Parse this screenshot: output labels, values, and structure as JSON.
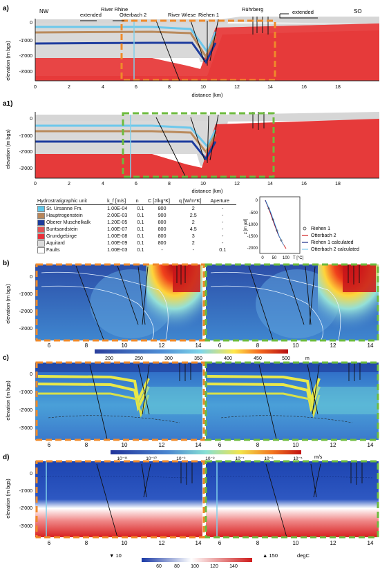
{
  "panel_a": {
    "label": "a)",
    "dir_left": "NW",
    "dir_right": "SO",
    "extended_left": "extended",
    "extended_right": "extended",
    "top_labels": [
      "River Rhine",
      "Otterbach 2",
      "River Wiese",
      "Riehen 1",
      "Rührberg"
    ],
    "ylabel": "elevation (m bgs)",
    "xlabel": "distance (km)",
    "y_ticks": [
      "0",
      "-1'000",
      "-2'000",
      "-3'000"
    ],
    "x_ticks": [
      "0",
      "2",
      "4",
      "6",
      "8",
      "10",
      "12",
      "14",
      "16",
      "18"
    ]
  },
  "panel_a1": {
    "label": "a1)",
    "ylabel": "elevation (m bgs)",
    "xlabel": "distance (km)",
    "y_ticks": [
      "0",
      "-1'000",
      "-2'000",
      "-3'000"
    ],
    "x_ticks": [
      "0",
      "2",
      "4",
      "6",
      "8",
      "10",
      "12",
      "14",
      "16",
      "18"
    ]
  },
  "table": {
    "headers": [
      "Hydrostratigraphic unit",
      "k_f [m/s]",
      "n",
      "C [J/kg*K]",
      "q [W/m*K]",
      "Aperture"
    ],
    "rows": [
      {
        "unit": "St. Ursanne Fm.",
        "color": "#5ec8ea",
        "kf": "1.00E-04",
        "n": "0.1",
        "c": "800",
        "q": "2",
        "ap": "-"
      },
      {
        "unit": "Hauptrogenstein",
        "color": "#b8865a",
        "kf": "2.00E-03",
        "n": "0.1",
        "c": "900",
        "q": "2.5",
        "ap": "-"
      },
      {
        "unit": "Oberer Muschelkalk",
        "color": "#1c3c9c",
        "kf": "1.20E-05",
        "n": "0.1",
        "c": "800",
        "q": "2",
        "ap": "-"
      },
      {
        "unit": "Buntsandstein",
        "color": "#e25454",
        "kf": "1.00E-07",
        "n": "0.1",
        "c": "800",
        "q": "4.5",
        "ap": "-"
      },
      {
        "unit": "Grundgebirge",
        "color": "#e8303a",
        "kf": "1.00E-08",
        "n": "0.1",
        "c": "800",
        "q": "3",
        "ap": "-"
      },
      {
        "unit": "Aquitard",
        "color": "#dcdcdc",
        "kf": "1.00E-09",
        "n": "0.1",
        "c": "800",
        "q": "2",
        "ap": "-"
      },
      {
        "unit": "Faults",
        "color": "#ffffff",
        "kf": "1.00E-03",
        "n": "0.1",
        "c": "-",
        "q": "-",
        "ap": "0.1"
      }
    ]
  },
  "inset": {
    "ylabel": "z [m asl]",
    "xlabel": "T [°C]",
    "y_ticks": [
      "0",
      "-500",
      "-1000",
      "-1500",
      "-2000"
    ],
    "x_ticks": [
      "0",
      "50",
      "100"
    ],
    "legend": [
      "Riehen 1",
      "Otterbach 2",
      "Riehen 1 calculated",
      "Otterbach 2 calculated"
    ]
  },
  "panel_b": {
    "label": "b)",
    "ylabel": "elevation (m bgs)",
    "y_ticks": [
      "0",
      "-1'000",
      "-2'000",
      "-3'000"
    ],
    "x_ticks": [
      "6",
      "8",
      "10",
      "12",
      "14"
    ],
    "cb_ticks": [
      "200",
      "250",
      "300",
      "350",
      "400",
      "450",
      "500"
    ],
    "cb_unit": "m"
  },
  "panel_c": {
    "label": "c)",
    "ylabel": "elevation (m bgs)",
    "y_ticks": [
      "0",
      "-1'000",
      "-2'000",
      "-3'000"
    ],
    "x_ticks": [
      "6",
      "8",
      "10",
      "12",
      "14"
    ],
    "cb_ticks": [
      "10⁻¹¹",
      "10⁻¹⁰",
      "10⁻⁹",
      "10⁻⁸",
      "10⁻⁷",
      "10⁻⁶",
      "10⁻⁵"
    ],
    "cb_unit": "m/s"
  },
  "panel_d": {
    "label": "d)",
    "ylabel": "elevation (m bgs)",
    "y_ticks": [
      "0",
      "-1'000",
      "-2'000",
      "-3'000"
    ],
    "x_ticks": [
      "6",
      "8",
      "10",
      "12",
      "14"
    ],
    "cb_ticks": [
      "60",
      "80",
      "100",
      "120",
      "140"
    ],
    "cb_min": "▼ 10",
    "cb_max": "▲ 150",
    "cb_unit": "degC"
  }
}
